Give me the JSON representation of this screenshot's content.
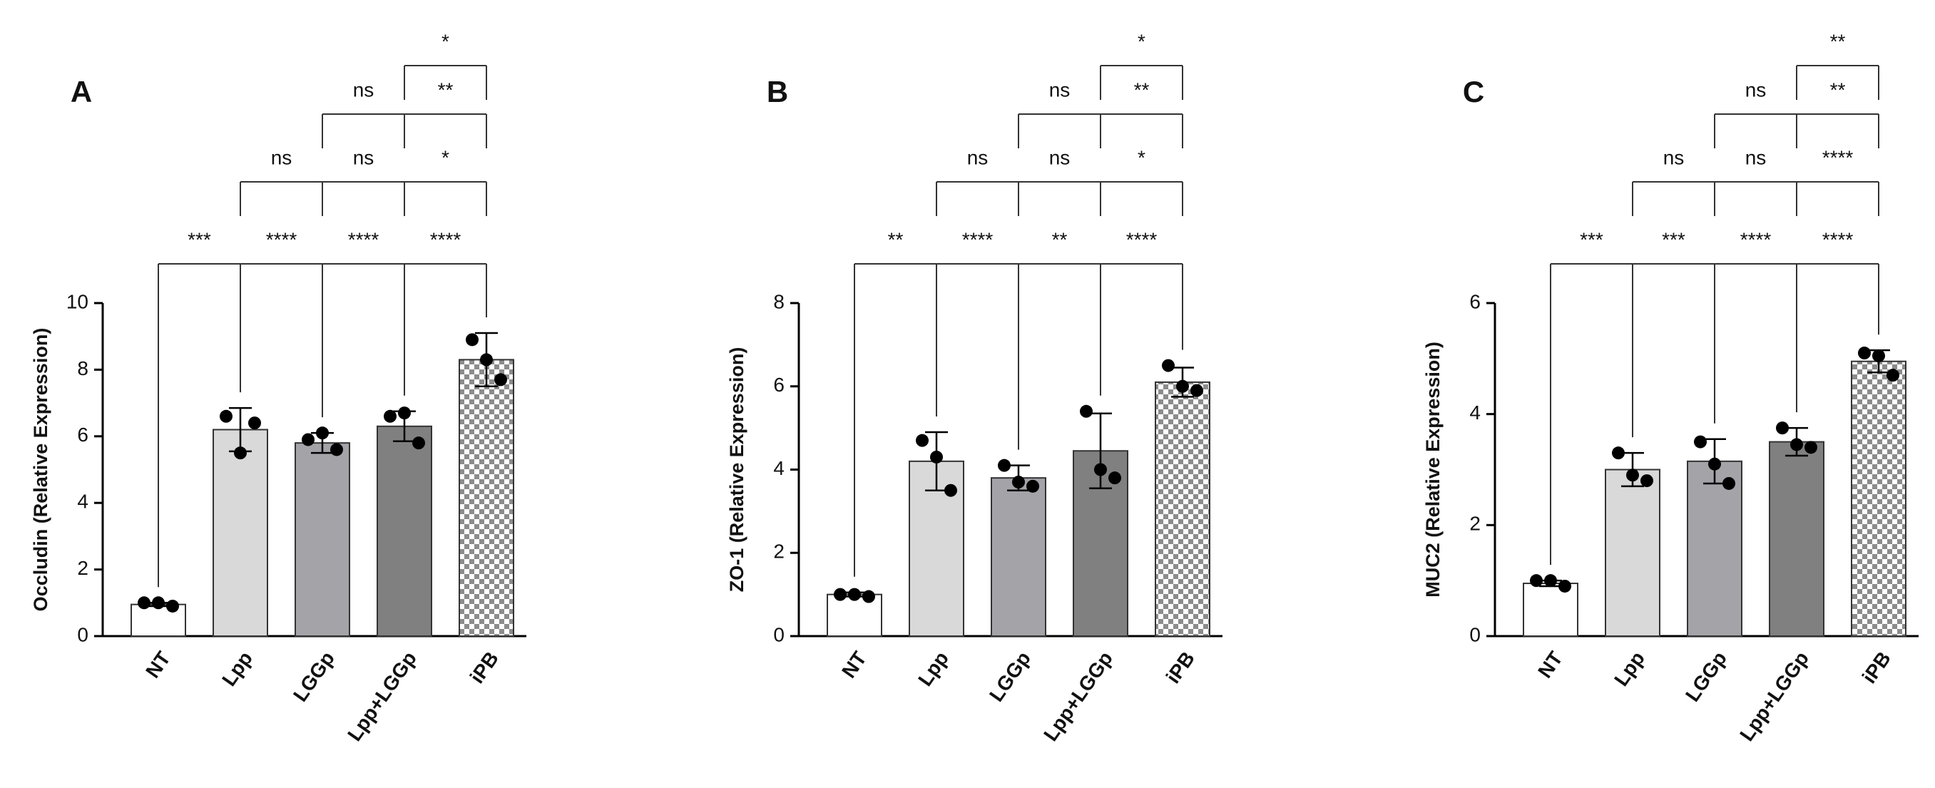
{
  "chart_data": [
    {
      "type": "bar",
      "panel": "A",
      "ylabel": "Occludin (Relative Expression)",
      "categories": [
        "NT",
        "Lpp",
        "LGGp",
        "Lpp+LGGp",
        "iPB"
      ],
      "values": [
        0.95,
        6.2,
        5.8,
        6.3,
        8.3
      ],
      "errors": [
        0.05,
        0.65,
        0.3,
        0.45,
        0.8
      ],
      "points": [
        [
          1.0,
          1.0,
          0.9
        ],
        [
          6.6,
          5.5,
          6.4
        ],
        [
          5.9,
          6.1,
          5.6
        ],
        [
          6.6,
          6.7,
          5.8
        ],
        [
          8.9,
          8.3,
          7.7
        ]
      ],
      "colors": [
        "#ffffff",
        "#d9d9d9",
        "#a3a3a8",
        "#808080",
        "checker"
      ],
      "ylim": [
        0,
        10
      ],
      "yticks": [
        0,
        2,
        4,
        6,
        8,
        10
      ],
      "brackets": [
        [
          "***",
          "****",
          "****",
          "****"
        ],
        [
          "ns",
          "ns",
          "*"
        ],
        [
          "ns",
          "**"
        ],
        [
          "*"
        ]
      ]
    },
    {
      "type": "bar",
      "panel": "B",
      "ylabel": "ZO-1 (Relative Expression)",
      "categories": [
        "NT",
        "Lpp",
        "LGGp",
        "Lpp+LGGp",
        "iPB"
      ],
      "values": [
        1.0,
        4.2,
        3.8,
        4.45,
        6.1
      ],
      "errors": [
        0.05,
        0.7,
        0.3,
        0.9,
        0.35
      ],
      "points": [
        [
          1.0,
          1.0,
          0.95
        ],
        [
          4.7,
          4.3,
          3.5
        ],
        [
          4.1,
          3.7,
          3.6
        ],
        [
          5.4,
          4.0,
          3.8
        ],
        [
          6.5,
          6.0,
          5.9
        ]
      ],
      "colors": [
        "#ffffff",
        "#d9d9d9",
        "#a3a3a8",
        "#808080",
        "checker"
      ],
      "ylim": [
        0,
        8
      ],
      "yticks": [
        0,
        2,
        4,
        6,
        8
      ],
      "brackets": [
        [
          "**",
          "****",
          "**",
          "****"
        ],
        [
          "ns",
          "ns",
          "*"
        ],
        [
          "ns",
          "**"
        ],
        [
          "*"
        ]
      ]
    },
    {
      "type": "bar",
      "panel": "C",
      "ylabel": "MUC2 (Relative Expression)",
      "categories": [
        "NT",
        "Lpp",
        "LGGp",
        "Lpp+LGGp",
        "iPB"
      ],
      "values": [
        0.95,
        3.0,
        3.15,
        3.5,
        4.95
      ],
      "errors": [
        0.05,
        0.3,
        0.4,
        0.25,
        0.2
      ],
      "points": [
        [
          1.0,
          1.0,
          0.9
        ],
        [
          3.3,
          2.9,
          2.8
        ],
        [
          3.5,
          3.1,
          2.75
        ],
        [
          3.75,
          3.45,
          3.4
        ],
        [
          5.1,
          5.05,
          4.7
        ]
      ],
      "colors": [
        "#ffffff",
        "#d9d9d9",
        "#a3a3a8",
        "#808080",
        "checker"
      ],
      "ylim": [
        0,
        6
      ],
      "yticks": [
        0,
        2,
        4,
        6
      ],
      "brackets": [
        [
          "***",
          "***",
          "****",
          "****"
        ],
        [
          "ns",
          "ns",
          "****"
        ],
        [
          "ns",
          "**"
        ],
        [
          "**"
        ]
      ]
    }
  ]
}
